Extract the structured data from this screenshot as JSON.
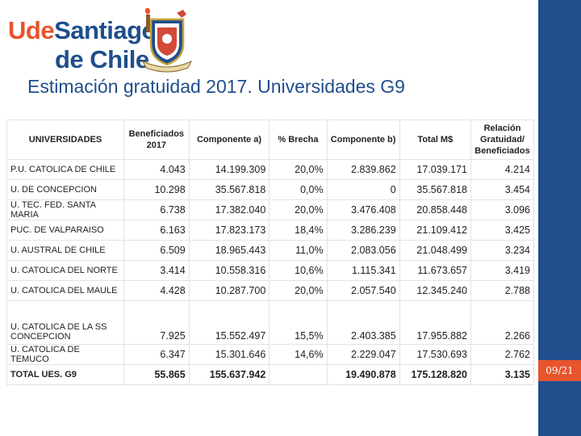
{
  "logo": {
    "line1_part1": "Ude",
    "line1_part2": "Santiago",
    "line2": "de Chile",
    "seal_icon": "university-seal-icon"
  },
  "slide": {
    "title": "Estimación gratuidad 2017. Universidades G9",
    "page_number": "09/21"
  },
  "colors": {
    "brand_blue": "#1f4e8c",
    "brand_orange": "#e8542c"
  },
  "table": {
    "headers": [
      "UNIVERSIDADES",
      "Beneficiados 2017",
      "Componente a)",
      "% Brecha",
      "Componente b)",
      "Total M$",
      "Relación Gratuidad/ Beneficiados"
    ],
    "rows": [
      [
        "P.U. CATOLICA DE CHILE",
        "4.043",
        "14.199.309",
        "20,0%",
        "2.839.862",
        "17.039.171",
        "4.214"
      ],
      [
        "U. DE CONCEPCION",
        "10.298",
        "35.567.818",
        "0,0%",
        "0",
        "35.567.818",
        "3.454"
      ],
      [
        "U. TEC. FED. SANTA MARIA",
        "6.738",
        "17.382.040",
        "20,0%",
        "3.476.408",
        "20.858.448",
        "3.096"
      ],
      [
        "PUC. DE VALPARAISO",
        "6.163",
        "17.823.173",
        "18,4%",
        "3.286.239",
        "21.109.412",
        "3.425"
      ],
      [
        "U. AUSTRAL DE CHILE",
        "6.509",
        "18.965.443",
        "11,0%",
        "2.083.056",
        "21.048.499",
        "3.234"
      ],
      [
        "U. CATOLICA DEL NORTE",
        "3.414",
        "10.558.316",
        "10,6%",
        "1.115.341",
        "11.673.657",
        "3.419"
      ],
      [
        "U. CATOLICA DEL MAULE",
        "4.428",
        "10.287.700",
        "20,0%",
        "2.057.540",
        "12.345.240",
        "2.788"
      ],
      [
        "U. CATOLICA DE LA SS CONCEPCION",
        "7.925",
        "15.552.497",
        "15,5%",
        "2.403.385",
        "17.955.882",
        "2.266"
      ],
      [
        "U. CATOLICA DE TEMUCO",
        "6.347",
        "15.301.646",
        "14,6%",
        "2.229.047",
        "17.530.693",
        "2.762"
      ]
    ],
    "total": [
      "TOTAL UES. G9",
      "55.865",
      "155.637.942",
      "",
      "19.490.878",
      "175.128.820",
      "3.135"
    ]
  }
}
